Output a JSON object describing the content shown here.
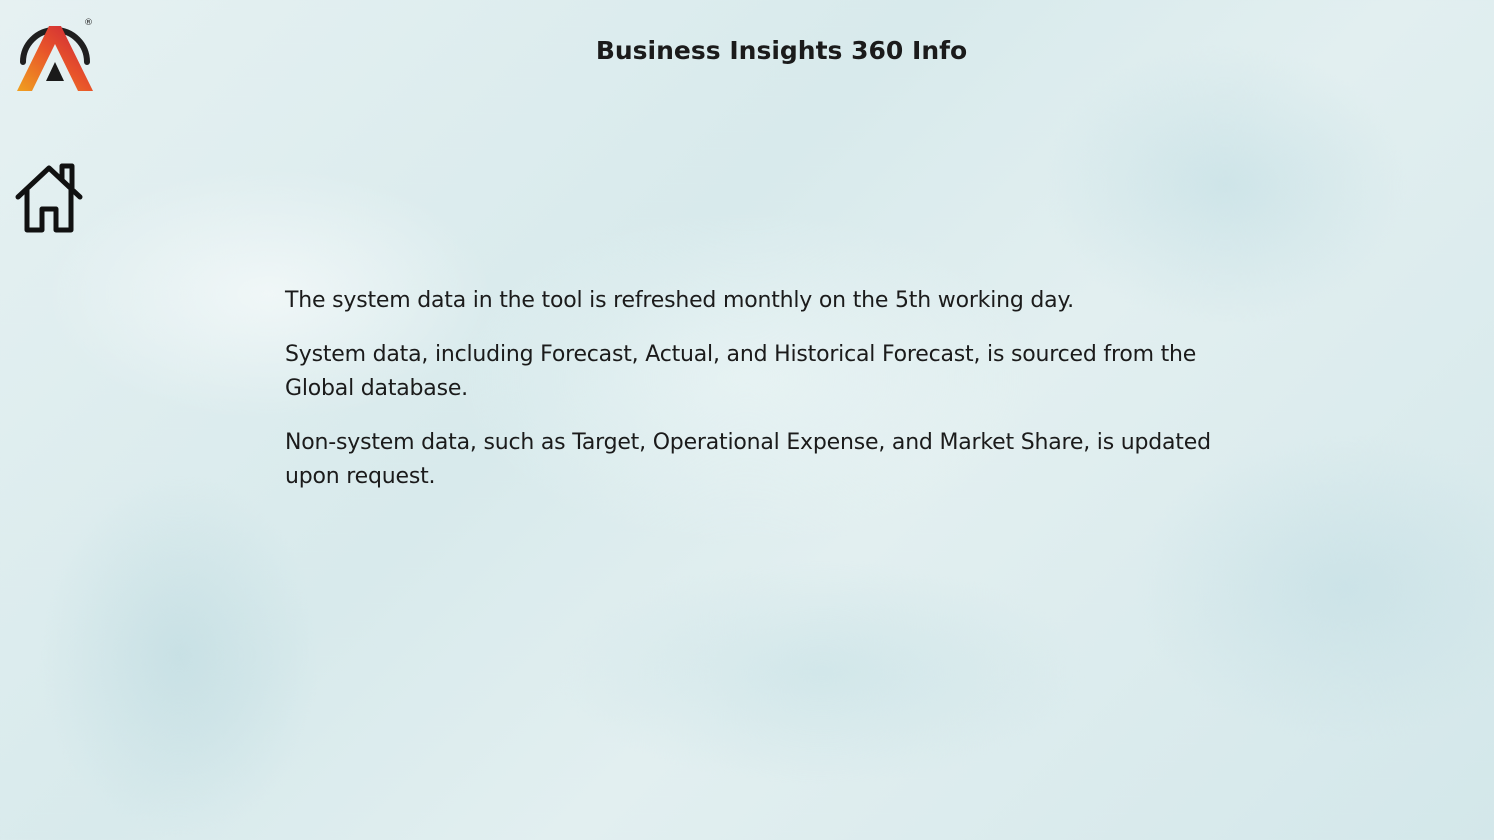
{
  "header": {
    "title": "Business Insights 360 Info"
  },
  "brand": {
    "logo_icon": "a-logo-icon",
    "registered_mark": "®",
    "colors": {
      "ring": "#1f1f1f",
      "gradient_start": "#f0a020",
      "gradient_mid": "#e8542a",
      "gradient_end": "#c81e3c",
      "inner": "#1a1a1a"
    }
  },
  "nav": {
    "home_icon": "home-icon"
  },
  "content": {
    "paragraphs": [
      "The system data in the tool is refreshed monthly on the 5th working day.",
      "System data, including Forecast, Actual, and Historical Forecast, is sourced from the Global database.",
      "Non-system data, such as Target, Operational Expense, and Market Share, is updated upon request."
    ]
  }
}
